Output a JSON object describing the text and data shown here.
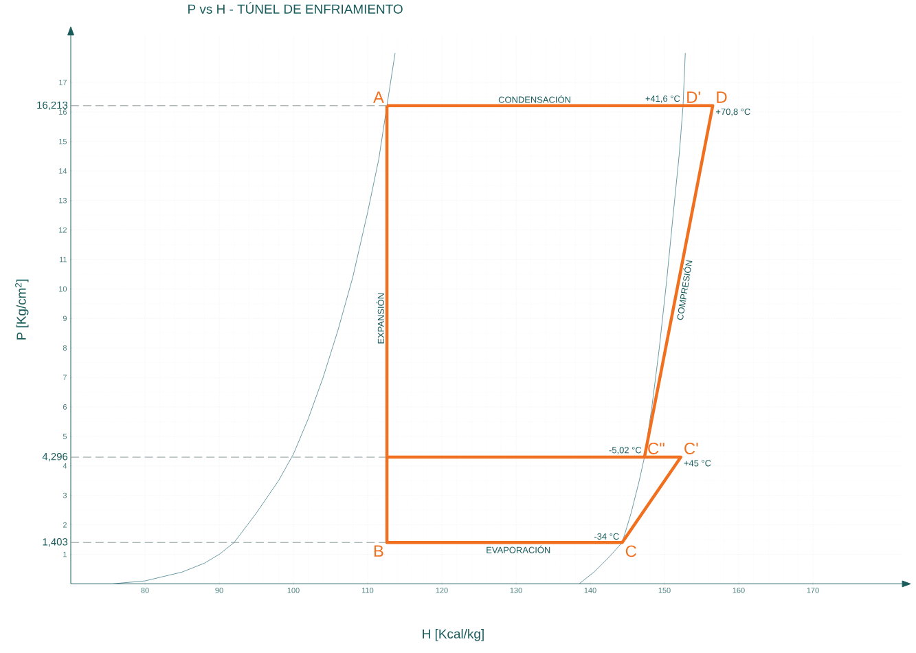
{
  "chart_data": {
    "type": "line",
    "title": "P vs H - TÚNEL DE ENFRIAMIENTO",
    "xlabel": "H [Kcal/kg]",
    "ylabel": "P [Kg/cm$^{2}$]",
    "xlim": [
      70,
      182
    ],
    "ylim": [
      0,
      18.6
    ],
    "xticks": [
      80,
      90,
      100,
      110,
      120,
      130,
      140,
      150,
      160,
      170
    ],
    "yticks": [
      1,
      2,
      3,
      4,
      5,
      6,
      7,
      8,
      9,
      10,
      11,
      12,
      13,
      14,
      15,
      16,
      17
    ],
    "grid": true,
    "series": [
      {
        "color": "#f07020",
        "x": [
          112.6,
          112.6,
          144.3,
          152.2,
          112.6,
          null,
          147.3,
          156.5,
          112.6
        ],
        "values": [
          16.213,
          1.403,
          1.403,
          4.296,
          4.296,
          null,
          4.296,
          16.213,
          16.213
        ]
      },
      {
        "color": "#5a8f99",
        "x": [
          75.5,
          80,
          85,
          88,
          90,
          92,
          95,
          98,
          100,
          102,
          104,
          106,
          108,
          110,
          111.5,
          112.6,
          113.7
        ],
        "values": [
          0,
          0.1,
          0.4,
          0.7,
          1.0,
          1.4,
          2.4,
          3.5,
          4.4,
          5.6,
          7.0,
          8.6,
          10.4,
          12.6,
          14.4,
          16.213,
          18.0
        ]
      },
      {
        "color": "#5a8f99",
        "x": [
          138.5,
          140.5,
          142.5,
          144.3,
          145.5,
          146.6,
          147.3,
          148.3,
          149.3,
          150.3,
          151.2,
          152.0,
          152.5,
          152.8
        ],
        "values": [
          0,
          0.4,
          0.9,
          1.403,
          2.4,
          3.5,
          4.296,
          6.0,
          8.0,
          10.3,
          12.6,
          14.6,
          16.213,
          18.0
        ]
      }
    ],
    "ref_lines": [
      {
        "axis": "y",
        "value": 16.213,
        "label": "16,213",
        "color": "#8a9a9a",
        "line_style": "dashed"
      },
      {
        "axis": "y",
        "value": 4.296,
        "label": "4,296",
        "color": "#8a9a9a",
        "line_style": "dashed"
      },
      {
        "axis": "y",
        "value": 1.403,
        "label": "1,403",
        "color": "#8a9a9a",
        "line_style": "dashed"
      }
    ],
    "annotations": [
      {
        "text": "A",
        "x": 112.6,
        "y": 16.213
      },
      {
        "text": "B",
        "x": 112.6,
        "y": 1.403
      },
      {
        "text": "C",
        "x": 144.3,
        "y": 1.403
      },
      {
        "text": "C\"",
        "x": 147.3,
        "y": 4.296
      },
      {
        "text": "C'",
        "x": 152.2,
        "y": 4.296
      },
      {
        "text": "D'",
        "x": 152.5,
        "y": 16.213
      },
      {
        "text": "D",
        "x": 156.5,
        "y": 16.213
      },
      {
        "text": "+41,6 °C",
        "x": 152.5,
        "y": 16.213
      },
      {
        "text": "+70,8 °C",
        "x": 156.5,
        "y": 16.213
      },
      {
        "text": "-5,02 °C",
        "x": 147.3,
        "y": 4.296
      },
      {
        "text": "+45 °C",
        "x": 152.2,
        "y": 4.296
      },
      {
        "text": "-34 °C",
        "x": 144.3,
        "y": 1.403
      },
      {
        "text": "CONDENSACIÓN",
        "x": 132.5,
        "y": 16.213
      },
      {
        "text": "EVAPORACIÓN",
        "x": 130.3,
        "y": 1.403
      },
      {
        "text": "EXPANSIÓN",
        "x": 112.6,
        "y": 9
      },
      {
        "text": "COMPRESIÓN",
        "x": 151.7,
        "y": 10
      }
    ]
  }
}
